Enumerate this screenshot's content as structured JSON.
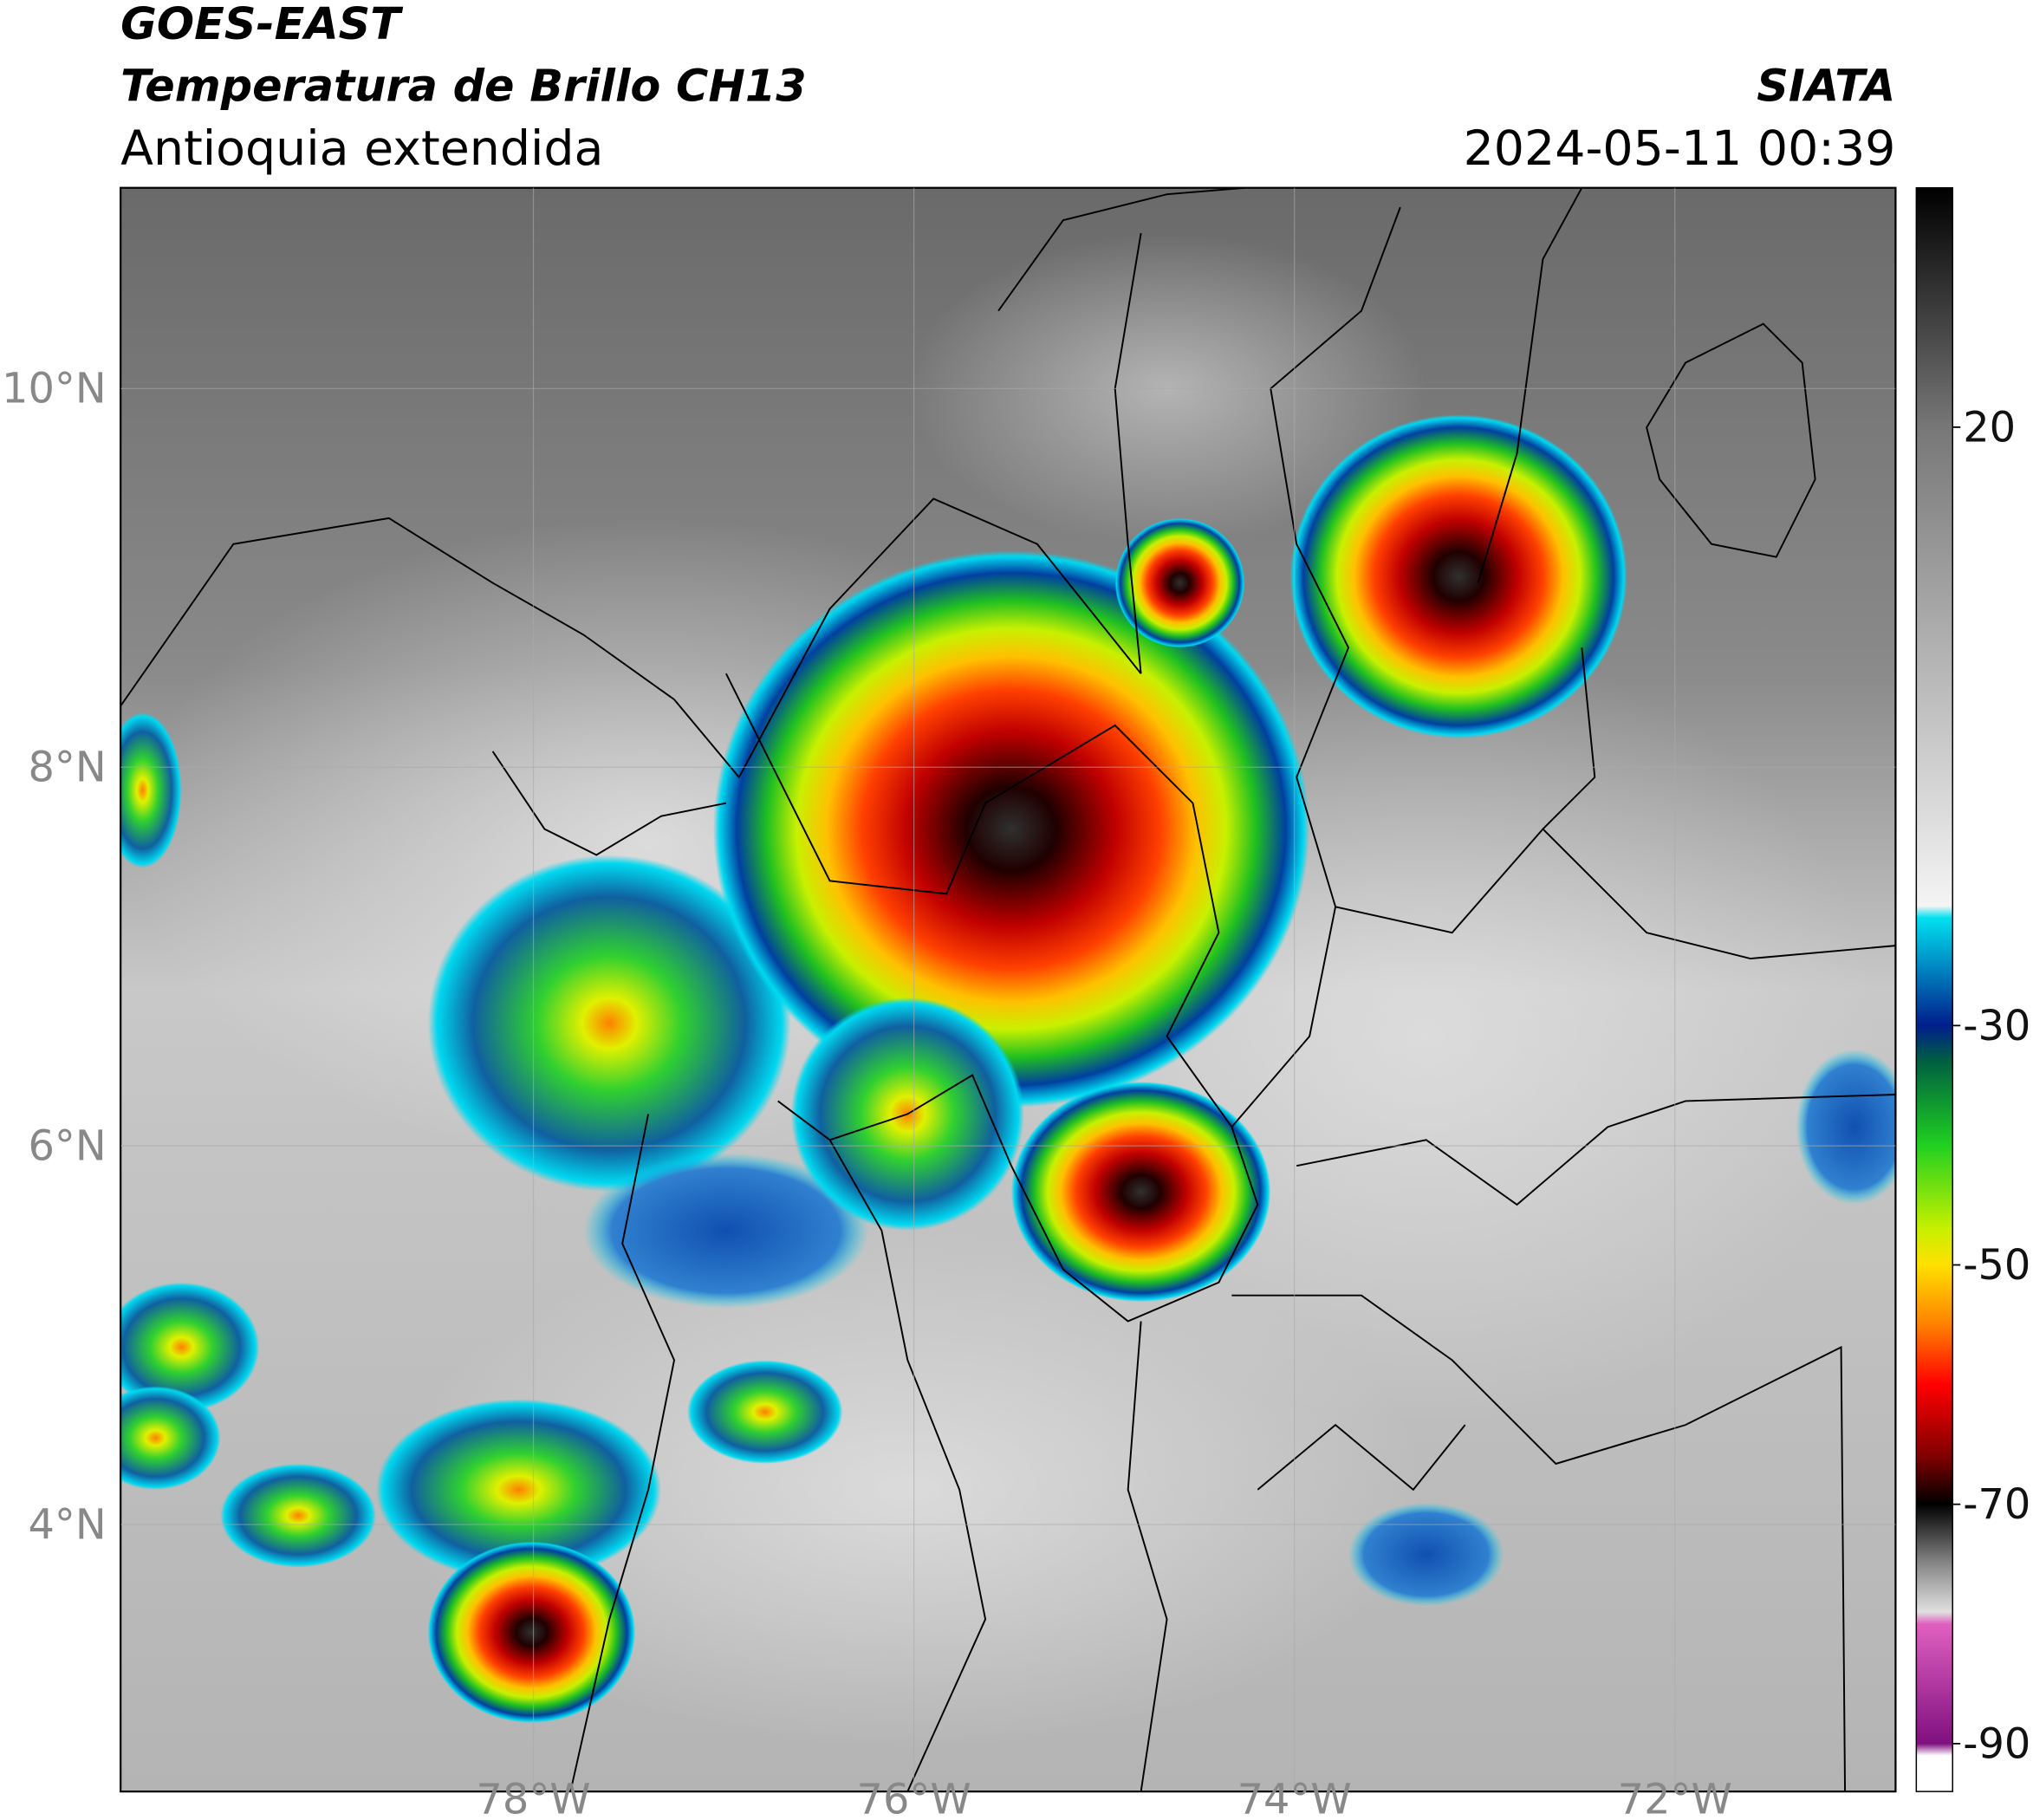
{
  "header": {
    "source": "GOES-EAST",
    "title": "Temperatura de Brillo CH13",
    "region": "Antioquia extendida",
    "agency": "SIATA",
    "datetime": "2024-05-11 00:39"
  },
  "map": {
    "lon_range": [
      -80.17,
      -70.84
    ],
    "lat_range": [
      2.59,
      11.06
    ],
    "lon_ticks": [
      {
        "value": -78,
        "label": "78°W"
      },
      {
        "value": -76,
        "label": "76°W"
      },
      {
        "value": -74,
        "label": "74°W"
      },
      {
        "value": -72,
        "label": "72°W"
      }
    ],
    "lat_ticks": [
      {
        "value": 10,
        "label": "10°N"
      },
      {
        "value": 8,
        "label": "8°N"
      },
      {
        "value": 6,
        "label": "6°N"
      },
      {
        "value": 4,
        "label": "4°N"
      }
    ]
  },
  "colorbar": {
    "lim": [
      -94,
      40
    ],
    "ticks": [
      20,
      -30,
      -50,
      -70,
      -90
    ],
    "stops": [
      {
        "value": 40,
        "color": "#000000"
      },
      {
        "value": 20,
        "color": "#777777"
      },
      {
        "value": -20,
        "color": "#f4f4f4"
      },
      {
        "value": -21,
        "color": "#00e0f0"
      },
      {
        "value": -30,
        "color": "#001e8c"
      },
      {
        "value": -33,
        "color": "#006040"
      },
      {
        "value": -40,
        "color": "#20d020"
      },
      {
        "value": -47,
        "color": "#c8f000"
      },
      {
        "value": -50,
        "color": "#ffe000"
      },
      {
        "value": -55,
        "color": "#ff8000"
      },
      {
        "value": -60,
        "color": "#ff0000"
      },
      {
        "value": -66,
        "color": "#800000"
      },
      {
        "value": -70,
        "color": "#000000"
      },
      {
        "value": -75,
        "color": "#888888"
      },
      {
        "value": -79,
        "color": "#e0e0e0"
      },
      {
        "value": -80,
        "color": "#e060c0"
      },
      {
        "value": -90,
        "color": "#801080"
      },
      {
        "value": -91,
        "color": "#ffffff"
      }
    ]
  }
}
